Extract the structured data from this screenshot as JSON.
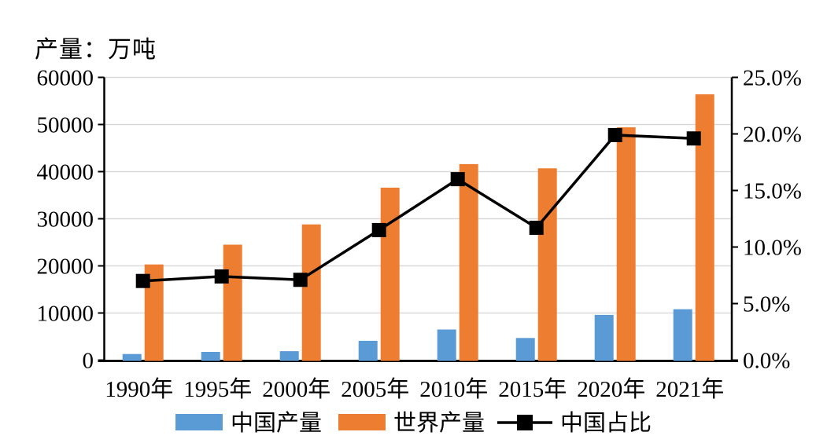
{
  "title": "产量：万吨",
  "chart_data": {
    "type": "bar",
    "subtype": "grouped-bar-with-line-combo",
    "categories": [
      "1990年",
      "1995年",
      "2000年",
      "2005年",
      "2010年",
      "2015年",
      "2020年",
      "2021年"
    ],
    "series": [
      {
        "name": "中国产量",
        "type": "bar",
        "axis": "left",
        "color": "#5B9BD5",
        "values": [
          1300,
          1750,
          1900,
          4100,
          6500,
          4700,
          9600,
          10800
        ]
      },
      {
        "name": "世界产量",
        "type": "bar",
        "axis": "left",
        "color": "#ED7D31",
        "values": [
          20300,
          24500,
          28800,
          36600,
          41600,
          40700,
          49400,
          56400
        ]
      },
      {
        "name": "中国占比",
        "type": "line",
        "axis": "right",
        "color": "#000000",
        "marker": "square",
        "values": [
          7.0,
          7.4,
          7.1,
          11.5,
          16.0,
          11.7,
          19.9,
          19.6
        ]
      }
    ],
    "left_axis": {
      "title": "产量：万吨",
      "min": 0,
      "max": 60000,
      "step": 10000,
      "tick_labels": [
        "0",
        "10000",
        "20000",
        "30000",
        "40000",
        "50000",
        "60000"
      ]
    },
    "right_axis": {
      "min": 0,
      "max": 25,
      "step": 5,
      "unit": "%",
      "tick_labels": [
        "0.0%",
        "5.0%",
        "10.0%",
        "15.0%",
        "20.0%",
        "25.0%"
      ]
    },
    "legend_position": "bottom",
    "grid": "horizontal",
    "colors": {
      "gridline": "#D9D9D9",
      "axis": "#000000",
      "background": "#FFFFFF"
    }
  }
}
